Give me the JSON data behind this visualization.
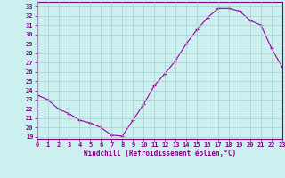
{
  "x": [
    0,
    1,
    2,
    3,
    4,
    5,
    6,
    7,
    8,
    9,
    10,
    11,
    12,
    13,
    14,
    15,
    16,
    17,
    18,
    19,
    20,
    21,
    22,
    23
  ],
  "y": [
    23.5,
    23.0,
    22.0,
    21.5,
    20.8,
    20.5,
    20.0,
    19.2,
    19.1,
    20.8,
    22.5,
    24.5,
    25.8,
    27.2,
    29.0,
    30.5,
    31.8,
    32.8,
    32.8,
    32.5,
    31.5,
    31.0,
    28.5,
    26.5
  ],
  "xlim": [
    0,
    23
  ],
  "ylim": [
    18.8,
    33.5
  ],
  "yticks": [
    19,
    20,
    21,
    22,
    23,
    24,
    25,
    26,
    27,
    28,
    29,
    30,
    31,
    32,
    33
  ],
  "xticks": [
    0,
    1,
    2,
    3,
    4,
    5,
    6,
    7,
    8,
    9,
    10,
    11,
    12,
    13,
    14,
    15,
    16,
    17,
    18,
    19,
    20,
    21,
    22,
    23
  ],
  "xlabel": "Windchill (Refroidissement éolien,°C)",
  "line_color": "#990099",
  "marker": "+",
  "bg_color": "#ccf0f0",
  "grid_color": "#aacccc",
  "axis_color": "#800080",
  "text_color": "#800080",
  "label_fontsize": 5.5,
  "tick_fontsize": 5.0
}
